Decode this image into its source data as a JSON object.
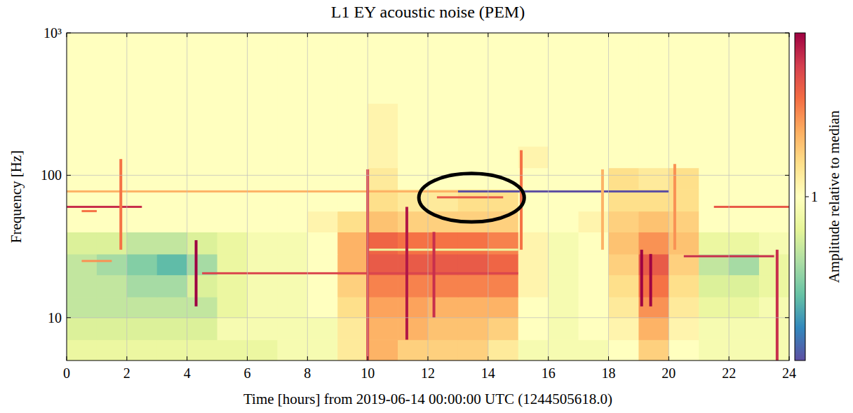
{
  "chart_data": {
    "type": "heatmap",
    "title": "L1 EY acoustic noise (PEM)",
    "x_label": "Time [hours] from 2019-06-14 00:00:00 UTC (1244505618.0)",
    "y_label": "Frequency [Hz]",
    "xlim": [
      0,
      24
    ],
    "ylim": [
      5,
      1000
    ],
    "xticks": [
      0,
      2,
      4,
      6,
      8,
      10,
      12,
      14,
      16,
      18,
      20,
      22,
      24
    ],
    "yticks": [
      10,
      100,
      {
        "value": 1000,
        "label": "10³"
      }
    ],
    "log": "y",
    "grid": true,
    "x_edges": [
      0,
      1,
      2,
      3,
      4,
      5,
      6,
      7,
      8,
      9,
      10,
      11,
      12,
      13,
      14,
      15,
      16,
      17,
      18,
      19,
      20,
      21,
      22,
      23,
      24
    ],
    "y_edges": [
      5,
      7,
      10,
      14,
      20,
      28,
      40,
      56,
      80,
      113,
      160,
      320,
      1000
    ],
    "cells": [
      [
        0.9,
        0.9,
        0.9,
        0.9,
        0.9,
        0.9,
        0.9,
        0.95,
        0.95,
        1.1,
        1.3,
        1.2,
        1.2,
        1.2,
        1.1,
        0.95,
        0.95,
        0.95,
        1.0,
        1.2,
        1.0,
        0.95,
        0.95,
        0.95
      ],
      [
        0.85,
        0.85,
        0.85,
        0.85,
        0.85,
        0.95,
        0.95,
        0.95,
        0.95,
        1.1,
        1.3,
        1.3,
        1.25,
        1.25,
        1.2,
        1.0,
        0.95,
        1.0,
        1.05,
        1.3,
        1.05,
        0.95,
        0.95,
        0.95
      ],
      [
        0.8,
        0.8,
        0.8,
        0.8,
        0.8,
        0.9,
        0.95,
        0.95,
        1.0,
        1.15,
        1.35,
        1.35,
        1.3,
        1.3,
        1.3,
        1.0,
        0.95,
        1.0,
        1.1,
        1.4,
        1.1,
        0.9,
        0.9,
        0.95
      ],
      [
        0.8,
        0.8,
        0.75,
        0.75,
        0.85,
        0.9,
        0.95,
        0.95,
        1.0,
        1.2,
        1.45,
        1.45,
        1.45,
        1.45,
        1.45,
        1.05,
        0.95,
        1.0,
        1.15,
        1.5,
        1.15,
        0.85,
        0.85,
        0.9
      ],
      [
        0.8,
        0.75,
        0.7,
        0.65,
        0.75,
        0.9,
        0.95,
        0.95,
        1.0,
        1.3,
        1.6,
        1.6,
        1.6,
        1.6,
        1.55,
        1.05,
        0.95,
        1.0,
        1.2,
        1.6,
        1.2,
        0.8,
        0.75,
        0.9
      ],
      [
        0.85,
        0.85,
        0.8,
        0.8,
        0.85,
        0.9,
        0.95,
        0.95,
        1.0,
        1.3,
        1.55,
        1.5,
        1.5,
        1.5,
        1.45,
        1.05,
        0.95,
        1.0,
        1.25,
        1.4,
        1.25,
        0.9,
        0.9,
        0.95
      ],
      [
        1.0,
        1.0,
        1.0,
        1.0,
        1.0,
        1.0,
        1.0,
        1.0,
        1.05,
        1.15,
        1.25,
        1.2,
        1.2,
        1.2,
        1.2,
        1.0,
        1.0,
        1.05,
        1.2,
        1.25,
        1.2,
        1.0,
        1.0,
        1.0
      ],
      [
        1.0,
        1.0,
        1.0,
        1.0,
        1.0,
        1.0,
        1.0,
        1.0,
        1.0,
        1.0,
        1.15,
        1.1,
        1.1,
        1.15,
        1.15,
        1.0,
        1.0,
        1.0,
        1.15,
        1.15,
        1.15,
        1.0,
        1.0,
        1.0
      ],
      [
        1.0,
        1.0,
        1.0,
        1.0,
        1.0,
        1.0,
        1.0,
        1.0,
        1.0,
        1.0,
        1.1,
        1.0,
        1.0,
        1.0,
        1.0,
        1.0,
        1.0,
        1.0,
        1.15,
        1.1,
        1.15,
        1.0,
        1.0,
        1.0
      ],
      [
        1.0,
        1.0,
        1.0,
        1.0,
        1.0,
        1.0,
        1.0,
        1.0,
        1.0,
        1.0,
        1.05,
        1.0,
        1.0,
        1.0,
        1.0,
        1.05,
        1.0,
        1.0,
        1.0,
        1.0,
        1.0,
        1.0,
        1.0,
        1.0
      ],
      [
        1.0,
        1.0,
        1.0,
        1.0,
        1.0,
        1.0,
        1.0,
        1.0,
        1.0,
        1.0,
        1.05,
        1.0,
        1.0,
        1.0,
        1.0,
        1.0,
        1.0,
        1.0,
        1.0,
        1.0,
        1.0,
        1.0,
        1.0,
        1.0
      ],
      [
        1.0,
        1.0,
        1.0,
        1.0,
        1.0,
        1.0,
        1.0,
        1.0,
        1.0,
        1.0,
        1.0,
        1.0,
        1.0,
        1.0,
        1.0,
        1.0,
        1.0,
        1.0,
        1.0,
        1.0,
        1.0,
        1.0,
        1.0,
        1.0
      ]
    ],
    "lines": [
      {
        "freq": 60,
        "start": 0,
        "end": 2.5,
        "value": 1.8
      },
      {
        "freq": 60,
        "start": 21.5,
        "end": 24,
        "value": 1.6
      },
      {
        "freq": 77,
        "start": 0,
        "end": 13,
        "value": 1.3
      },
      {
        "freq": 77,
        "start": 13,
        "end": 20,
        "value": 0.5
      },
      {
        "freq": 70,
        "start": 12.3,
        "end": 14.5,
        "value": 1.6
      },
      {
        "freq": 20.5,
        "start": 4.5,
        "end": 15,
        "value": 1.7
      },
      {
        "freq": 30,
        "start": 10,
        "end": 15,
        "value": 0.9
      },
      {
        "freq": 27,
        "start": 20.5,
        "end": 23.5,
        "value": 1.8
      },
      {
        "freq": 56,
        "start": 0.5,
        "end": 1,
        "value": 1.5
      },
      {
        "freq": 25,
        "start": 0.5,
        "end": 1.5,
        "value": 1.4
      }
    ],
    "transients": [
      {
        "time": 4.3,
        "fmin": 12,
        "fmax": 35,
        "value": 2
      },
      {
        "time": 10,
        "fmin": 5,
        "fmax": 110,
        "value": 1.7
      },
      {
        "time": 11.3,
        "fmin": 7,
        "fmax": 60,
        "value": 1.9
      },
      {
        "time": 12.2,
        "fmin": 10,
        "fmax": 40,
        "value": 1.8
      },
      {
        "time": 19.1,
        "fmin": 12,
        "fmax": 30,
        "value": 2
      },
      {
        "time": 19.4,
        "fmin": 12,
        "fmax": 28,
        "value": 2
      },
      {
        "time": 15.1,
        "fmin": 30,
        "fmax": 150,
        "value": 1.5
      },
      {
        "time": 1.8,
        "fmin": 30,
        "fmax": 130,
        "value": 1.5
      },
      {
        "time": 23.6,
        "fmin": 5,
        "fmax": 30,
        "value": 1.8
      },
      {
        "time": 20.2,
        "fmin": 30,
        "fmax": 120,
        "value": 1.4
      },
      {
        "time": 17.8,
        "fmin": 30,
        "fmax": 110,
        "value": 1.3
      }
    ],
    "colorbar": {
      "label": "Amplitude relative to median",
      "lim": [
        0.5,
        2
      ],
      "ticks": [
        1
      ],
      "log": true
    },
    "highlight": {
      "x": [
        11.7,
        15.2
      ],
      "y": [
        47,
        103
      ]
    }
  }
}
